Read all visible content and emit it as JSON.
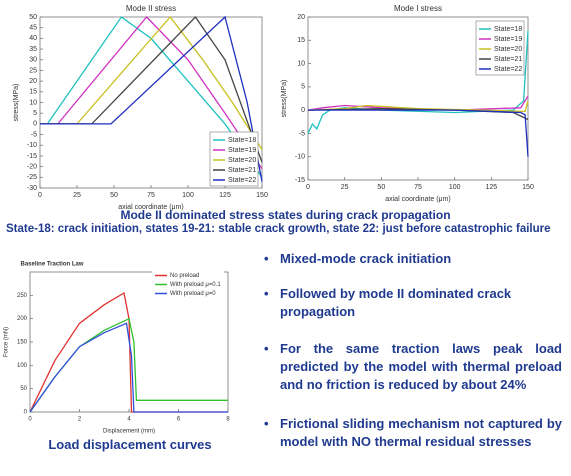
{
  "chart_data": [
    {
      "type": "line",
      "title": "Mode II stress",
      "x_label": "axial coordinate (μm)",
      "y_label": "stress(MPa)",
      "xlim": [
        0,
        150
      ],
      "xticks": [
        0,
        25,
        50,
        75,
        100,
        125,
        150
      ],
      "ylim": [
        -30,
        50
      ],
      "yticks": [
        -30,
        -25,
        -20,
        -15,
        -10,
        -5,
        0,
        5,
        10,
        15,
        20,
        25,
        30,
        35,
        40,
        45,
        50
      ],
      "legend": "lower right",
      "series": [
        {
          "name": "State=18",
          "color": "#20c0c0",
          "x": [
            0,
            5,
            55,
            75,
            100,
            125,
            150
          ],
          "values": [
            0,
            0,
            50,
            40,
            20,
            0,
            -25
          ]
        },
        {
          "name": "State=19",
          "color": "#d030c0",
          "x": [
            0,
            12,
            72,
            100,
            125,
            150
          ],
          "values": [
            0,
            0,
            50,
            30,
            5,
            -21
          ]
        },
        {
          "name": "State=20",
          "color": "#c8c020",
          "x": [
            0,
            25,
            88,
            110,
            130,
            150
          ],
          "values": [
            0,
            0,
            50,
            30,
            10,
            -12
          ]
        },
        {
          "name": "State=21",
          "color": "#444444",
          "x": [
            0,
            35,
            105,
            125,
            150
          ],
          "values": [
            0,
            0,
            50,
            30,
            -18
          ]
        },
        {
          "name": "State=22",
          "color": "#2030c0",
          "x": [
            0,
            48,
            125,
            140,
            150
          ],
          "values": [
            0,
            0,
            50,
            10,
            -27
          ]
        }
      ]
    },
    {
      "type": "line",
      "title": "Mode I stress",
      "x_label": "axial coordinate (μm)",
      "y_label": "stress(MPa)",
      "xlim": [
        0,
        150
      ],
      "xticks": [
        0,
        25,
        50,
        75,
        100,
        125,
        150
      ],
      "ylim": [
        -15,
        20
      ],
      "yticks": [
        -15,
        -10,
        -5,
        0,
        5,
        10,
        15,
        20
      ],
      "legend": "upper right",
      "series": [
        {
          "name": "State=18",
          "color": "#20c0c0",
          "x": [
            0,
            3,
            6,
            10,
            15,
            25,
            50,
            100,
            140,
            147,
            150
          ],
          "values": [
            -5,
            -3,
            -4,
            -1,
            0,
            0.5,
            0,
            -0.5,
            0,
            2,
            17
          ]
        },
        {
          "name": "State=19",
          "color": "#d030c0",
          "x": [
            0,
            10,
            25,
            50,
            100,
            145,
            150
          ],
          "values": [
            0,
            0.5,
            1,
            0.5,
            0,
            0.5,
            3
          ]
        },
        {
          "name": "State=20",
          "color": "#c8c020",
          "x": [
            0,
            25,
            40,
            75,
            120,
            148,
            150
          ],
          "values": [
            0,
            0.3,
            1,
            0.3,
            0,
            -0.3,
            2
          ]
        },
        {
          "name": "State=21",
          "color": "#444444",
          "x": [
            0,
            50,
            100,
            140,
            150
          ],
          "values": [
            0,
            0.3,
            0,
            -0.5,
            -2
          ]
        },
        {
          "name": "State=22",
          "color": "#2030c0",
          "x": [
            0,
            50,
            100,
            145,
            148,
            150
          ],
          "values": [
            0,
            0,
            0,
            -0.5,
            -1,
            -10
          ]
        }
      ]
    },
    {
      "type": "line",
      "title": "Baseline Traction Law",
      "x_label": "Displacement (mm)",
      "y_label": "Force (mN)",
      "xlim": [
        0,
        8
      ],
      "xticks": [
        0,
        2,
        4,
        6,
        8
      ],
      "ylim": [
        0,
        300
      ],
      "yticks": [
        0,
        50,
        100,
        150,
        200,
        250
      ],
      "legend": "upper right",
      "series": [
        {
          "name": "No preload",
          "color": "#e03030",
          "x": [
            0,
            1,
            2,
            3,
            3.8,
            4,
            4.1,
            8
          ],
          "values": [
            0,
            110,
            190,
            230,
            255,
            200,
            0,
            0
          ]
        },
        {
          "name": "With preload μ=0.1",
          "color": "#30c030",
          "x": [
            0,
            1,
            2,
            3,
            4,
            4.2,
            4.3,
            8
          ],
          "values": [
            0,
            75,
            140,
            175,
            200,
            150,
            25,
            25
          ]
        },
        {
          "name": "With preload μ=0",
          "color": "#3050e0",
          "x": [
            0,
            1,
            2,
            3,
            3.9,
            4.1,
            4.2,
            8
          ],
          "values": [
            0,
            75,
            140,
            170,
            190,
            120,
            0,
            0
          ]
        }
      ]
    }
  ],
  "captions": [
    "Mode II dominated stress states during crack propagation",
    "State-18: crack initiation, states 19-21: stable crack growth, state 22: just before catastrophic failure",
    "Load displacement curves"
  ],
  "bullets": [
    "Mixed-mode crack initiation",
    "Followed by mode II dominated crack propagation",
    "For the same traction laws peak load predicted by the model with thermal preload and no friction is reduced by about 24%",
    "Frictional sliding mechanism not captured by model with NO thermal residual stresses"
  ]
}
